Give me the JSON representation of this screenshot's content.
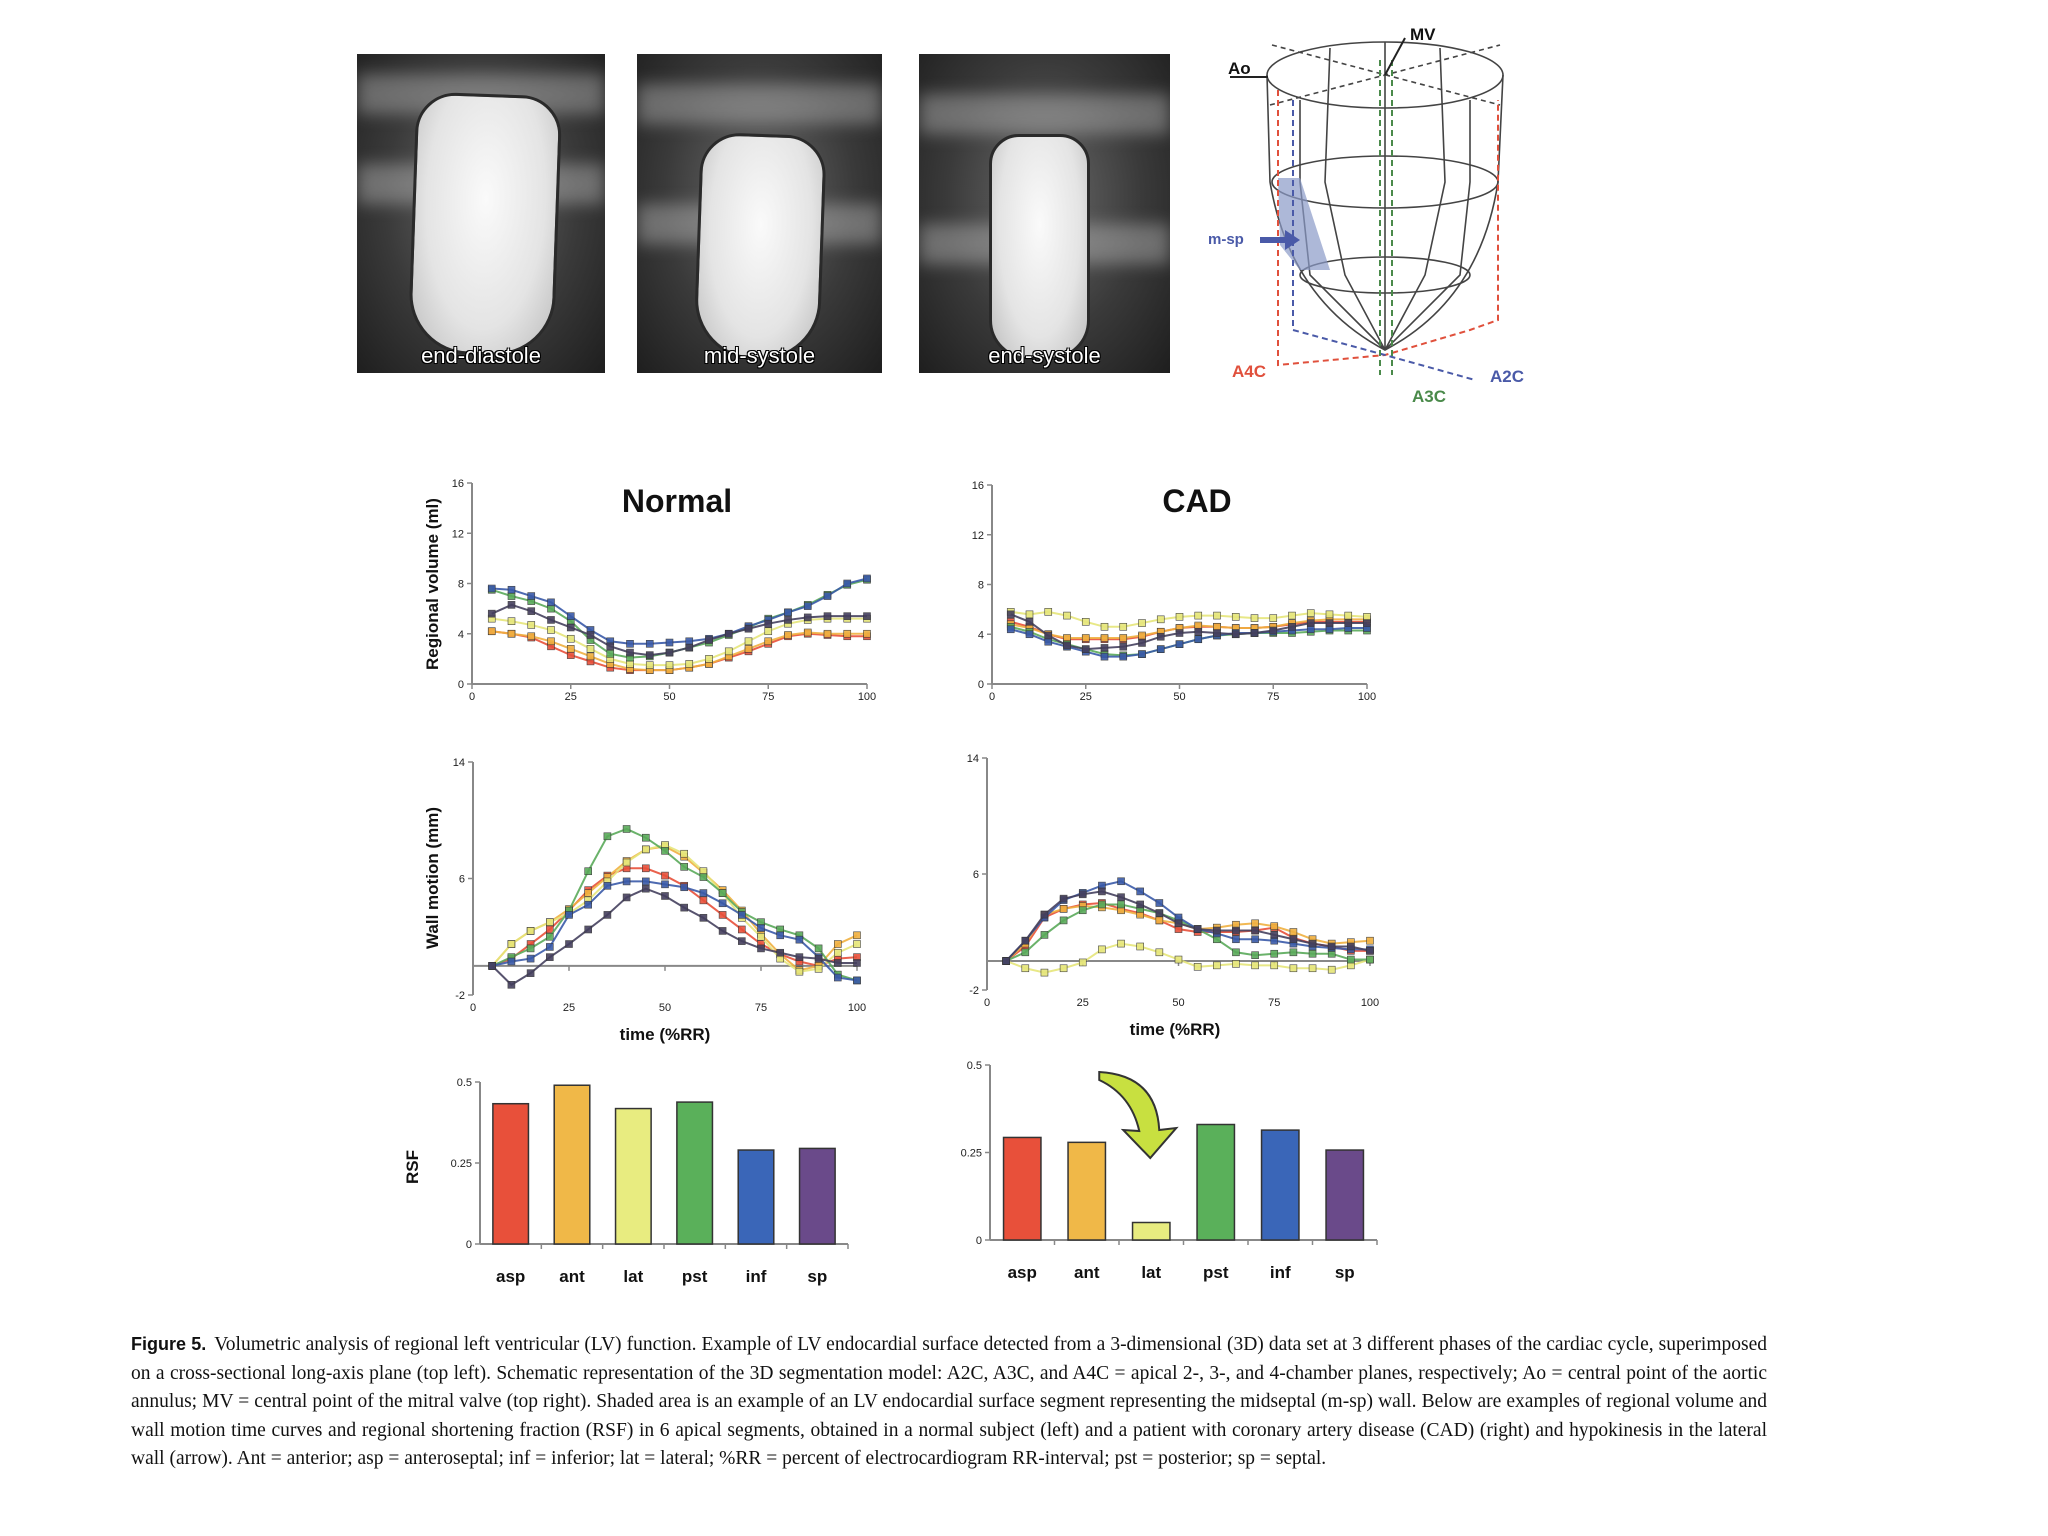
{
  "images": [
    {
      "label": "end-diastole"
    },
    {
      "label": "mid-systole"
    },
    {
      "label": "end-systole"
    }
  ],
  "schematic": {
    "labels": {
      "ao": "Ao",
      "mv": "MV",
      "msp": "m-sp",
      "a4c": "A4C",
      "a3c": "A3C",
      "a2c": "A2C"
    },
    "colors": {
      "a4c": "#e0503c",
      "a3c": "#4a8a4a",
      "a2c": "#4a5aa8",
      "shade": "#8a9ac8"
    }
  },
  "series_colors": [
    "#e8503a",
    "#f0b040",
    "#e6e67a",
    "#5aaa5a",
    "#3a5aa8",
    "#45405e"
  ],
  "chart_data": [
    {
      "id": "normal-volume",
      "type": "line",
      "title": "Normal",
      "ylabel": "Regional volume (ml)",
      "xlabel": "",
      "xlim": [
        0,
        100
      ],
      "ylim": [
        0,
        16
      ],
      "xticks": [
        "0",
        "25",
        "50",
        "75",
        "100"
      ],
      "yticks": [
        "0",
        "4",
        "8",
        "12",
        "16"
      ],
      "x": [
        5,
        10,
        15,
        20,
        25,
        30,
        35,
        40,
        45,
        50,
        55,
        60,
        65,
        70,
        75,
        80,
        85,
        90,
        95,
        100
      ],
      "series": [
        {
          "values": [
            4.2,
            4.0,
            3.7,
            3.0,
            2.3,
            1.8,
            1.3,
            1.1,
            1.1,
            1.1,
            1.3,
            1.6,
            2.1,
            2.6,
            3.2,
            3.8,
            4.0,
            3.9,
            3.8,
            3.8
          ]
        },
        {
          "values": [
            4.2,
            4.0,
            3.8,
            3.4,
            2.8,
            2.2,
            1.6,
            1.2,
            1.1,
            1.1,
            1.3,
            1.6,
            2.2,
            2.8,
            3.4,
            3.9,
            4.1,
            4.0,
            4.0,
            4.0
          ]
        },
        {
          "values": [
            5.2,
            5.0,
            4.7,
            4.3,
            3.6,
            2.8,
            2.0,
            1.6,
            1.5,
            1.5,
            1.6,
            2.0,
            2.6,
            3.4,
            4.2,
            4.8,
            5.1,
            5.2,
            5.2,
            5.2
          ]
        },
        {
          "values": [
            7.5,
            7.0,
            6.6,
            6.0,
            5.0,
            3.5,
            2.4,
            2.1,
            2.2,
            2.5,
            2.9,
            3.3,
            3.9,
            4.5,
            5.2,
            5.7,
            6.3,
            7.1,
            7.9,
            8.3
          ]
        },
        {
          "values": [
            7.6,
            7.5,
            7.0,
            6.5,
            5.4,
            4.3,
            3.4,
            3.2,
            3.2,
            3.3,
            3.4,
            3.6,
            4.0,
            4.6,
            5.1,
            5.7,
            6.2,
            7.0,
            8.0,
            8.4
          ]
        },
        {
          "values": [
            5.6,
            6.3,
            5.8,
            5.1,
            4.5,
            3.9,
            3.0,
            2.5,
            2.3,
            2.5,
            2.9,
            3.5,
            4.0,
            4.4,
            4.8,
            5.1,
            5.3,
            5.4,
            5.4,
            5.4
          ]
        }
      ]
    },
    {
      "id": "cad-volume",
      "type": "line",
      "title": "CAD",
      "ylabel": "",
      "xlabel": "",
      "xlim": [
        0,
        100
      ],
      "ylim": [
        0,
        16
      ],
      "xticks": [
        "0",
        "25",
        "50",
        "75",
        "100"
      ],
      "yticks": [
        "0",
        "4",
        "8",
        "12",
        "16"
      ],
      "x": [
        5,
        10,
        15,
        20,
        25,
        30,
        35,
        40,
        45,
        50,
        55,
        60,
        65,
        70,
        75,
        80,
        85,
        90,
        95,
        100
      ],
      "series": [
        {
          "values": [
            5.0,
            4.6,
            4.0,
            3.6,
            3.6,
            3.6,
            3.6,
            3.8,
            4.2,
            4.5,
            4.6,
            4.6,
            4.5,
            4.5,
            4.6,
            4.8,
            5.0,
            5.0,
            5.0,
            5.0
          ]
        },
        {
          "values": [
            4.8,
            4.5,
            4.0,
            3.7,
            3.7,
            3.7,
            3.7,
            3.9,
            4.2,
            4.5,
            4.7,
            4.6,
            4.5,
            4.5,
            4.6,
            4.9,
            5.1,
            5.2,
            5.2,
            5.2
          ]
        },
        {
          "values": [
            5.8,
            5.6,
            5.8,
            5.5,
            5.0,
            4.6,
            4.6,
            4.9,
            5.2,
            5.4,
            5.5,
            5.5,
            5.4,
            5.3,
            5.3,
            5.5,
            5.7,
            5.6,
            5.5,
            5.4
          ]
        },
        {
          "values": [
            4.6,
            4.2,
            3.6,
            3.2,
            2.8,
            2.4,
            2.3,
            2.4,
            2.8,
            3.2,
            3.6,
            3.9,
            4.0,
            4.1,
            4.1,
            4.1,
            4.2,
            4.3,
            4.3,
            4.3
          ]
        },
        {
          "values": [
            4.4,
            4.0,
            3.4,
            3.0,
            2.6,
            2.2,
            2.2,
            2.4,
            2.8,
            3.2,
            3.6,
            3.9,
            4.1,
            4.1,
            4.2,
            4.3,
            4.4,
            4.4,
            4.5,
            4.5
          ]
        },
        {
          "values": [
            5.6,
            5.0,
            3.9,
            3.1,
            2.8,
            2.9,
            3.0,
            3.3,
            3.8,
            4.1,
            4.2,
            4.1,
            4.0,
            4.1,
            4.3,
            4.6,
            4.9,
            4.9,
            4.9,
            4.9
          ]
        }
      ]
    },
    {
      "id": "normal-wall",
      "type": "line",
      "title": "",
      "ylabel": "Wall motion (mm)",
      "xlabel": "time (%RR)",
      "xlim": [
        0,
        100
      ],
      "ylim": [
        -2,
        14
      ],
      "xticks": [
        "0",
        "25",
        "50",
        "75",
        "100"
      ],
      "yticks": [
        "-2",
        "6",
        "14"
      ],
      "x": [
        5,
        10,
        15,
        20,
        25,
        30,
        35,
        40,
        45,
        50,
        55,
        60,
        65,
        70,
        75,
        80,
        85,
        90,
        95,
        100
      ],
      "series": [
        {
          "values": [
            0,
            0.5,
            1.5,
            2.5,
            3.8,
            5.2,
            6.2,
            6.7,
            6.7,
            6.2,
            5.5,
            4.5,
            3.5,
            2.5,
            1.5,
            0.8,
            0.3,
            0,
            0.5,
            0.6
          ]
        },
        {
          "values": [
            0,
            1.5,
            2.4,
            3.0,
            3.9,
            5.0,
            6.1,
            7.2,
            8.0,
            8.2,
            7.5,
            6.4,
            5.2,
            3.8,
            2.2,
            0.8,
            -0.3,
            0,
            1.5,
            2.1
          ]
        },
        {
          "values": [
            0,
            1.5,
            2.4,
            3.0,
            3.6,
            4.5,
            5.8,
            7.1,
            8.0,
            8.3,
            7.7,
            6.5,
            5.0,
            3.3,
            2.0,
            0.5,
            -0.4,
            -0.2,
            0.9,
            1.5
          ]
        },
        {
          "values": [
            0,
            0.6,
            1.2,
            2.0,
            3.8,
            6.5,
            8.9,
            9.4,
            8.8,
            7.9,
            6.8,
            6.1,
            5.0,
            3.7,
            3.0,
            2.5,
            2.1,
            1.2,
            -0.6,
            -1.0
          ]
        },
        {
          "values": [
            0,
            0.3,
            0.5,
            1.3,
            3.5,
            4.2,
            5.5,
            5.8,
            5.8,
            5.6,
            5.4,
            5.0,
            4.3,
            3.5,
            2.6,
            2.1,
            1.8,
            0.6,
            -0.8,
            -1.0
          ]
        },
        {
          "values": [
            0,
            -1.3,
            -0.5,
            0.6,
            1.5,
            2.5,
            3.5,
            4.7,
            5.3,
            4.8,
            4.0,
            3.3,
            2.4,
            1.7,
            1.2,
            0.9,
            0.6,
            0.5,
            0.2,
            0.2
          ]
        }
      ]
    },
    {
      "id": "cad-wall",
      "type": "line",
      "title": "",
      "ylabel": "",
      "xlabel": "time (%RR)",
      "xlim": [
        0,
        100
      ],
      "ylim": [
        -2,
        14
      ],
      "xticks": [
        "0",
        "25",
        "50",
        "75",
        "100"
      ],
      "yticks": [
        "-2",
        "6",
        "14"
      ],
      "x": [
        5,
        10,
        15,
        20,
        25,
        30,
        35,
        40,
        45,
        50,
        55,
        60,
        65,
        70,
        75,
        80,
        85,
        90,
        95,
        100
      ],
      "series": [
        {
          "values": [
            0,
            1.0,
            3.0,
            3.6,
            3.9,
            4.0,
            3.6,
            3.3,
            2.8,
            2.2,
            2.0,
            2.0,
            2.0,
            2.1,
            2.3,
            1.6,
            1.2,
            1.0,
            0.7,
            0.7
          ]
        },
        {
          "values": [
            0,
            1.2,
            3.2,
            3.6,
            3.8,
            3.7,
            3.5,
            3.2,
            2.8,
            2.6,
            2.2,
            2.3,
            2.5,
            2.6,
            2.4,
            2.0,
            1.5,
            1.2,
            1.3,
            1.4
          ]
        },
        {
          "values": [
            0,
            -0.5,
            -0.8,
            -0.5,
            -0.1,
            0.8,
            1.2,
            1.0,
            0.6,
            0.1,
            -0.4,
            -0.3,
            -0.2,
            -0.3,
            -0.3,
            -0.5,
            -0.5,
            -0.6,
            -0.3,
            0.1
          ]
        },
        {
          "values": [
            0,
            0.6,
            1.8,
            2.8,
            3.5,
            3.9,
            3.9,
            3.6,
            3.3,
            2.8,
            2.2,
            1.5,
            0.6,
            0.4,
            0.5,
            0.6,
            0.5,
            0.5,
            0.1,
            0.1
          ]
        },
        {
          "values": [
            0,
            1.4,
            3.0,
            4.2,
            4.7,
            5.2,
            5.5,
            4.8,
            4.0,
            3.0,
            2.2,
            1.9,
            1.5,
            1.5,
            1.4,
            1.2,
            1.0,
            0.9,
            0.8,
            0.8
          ]
        },
        {
          "values": [
            0,
            1.4,
            3.2,
            4.3,
            4.6,
            4.8,
            4.4,
            3.9,
            3.3,
            2.6,
            2.2,
            2.1,
            2.1,
            2.1,
            1.8,
            1.5,
            1.2,
            1.0,
            1.0,
            0.7
          ]
        }
      ]
    },
    {
      "id": "normal-rsf",
      "type": "bar",
      "title": "",
      "ylabel": "RSF",
      "xlabel": "",
      "ylim": [
        0,
        0.5
      ],
      "yticks": [
        "0",
        "0.25",
        "0.5"
      ],
      "categories": [
        "asp",
        "ant",
        "lat",
        "pst",
        "inf",
        "sp"
      ],
      "values": [
        0.433,
        0.49,
        0.418,
        0.438,
        0.29,
        0.295
      ]
    },
    {
      "id": "cad-rsf",
      "type": "bar",
      "title": "",
      "ylabel": "",
      "xlabel": "",
      "ylim": [
        0,
        0.5
      ],
      "yticks": [
        "0",
        "0.25",
        "0.5"
      ],
      "categories": [
        "asp",
        "ant",
        "lat",
        "pst",
        "inf",
        "sp"
      ],
      "values": [
        0.293,
        0.279,
        0.05,
        0.33,
        0.314,
        0.257
      ],
      "annotation": {
        "type": "arrow",
        "target": "lat",
        "color": "#c8e040"
      }
    }
  ],
  "caption": {
    "label": "Figure 5.",
    "text": "Volumetric analysis of regional left ventricular (LV) function. Example of LV endocardial surface detected from a 3-dimensional (3D) data set at 3 different phases of the cardiac cycle, superimposed on a cross-sectional long-axis plane (top left). Schematic representation of the 3D segmentation model: A2C, A3C, and A4C = apical 2-, 3-, and 4-chamber planes, respectively; Ao = central point of the aortic annulus; MV = central point of the mitral valve (top right). Shaded area is an example of an LV endocardial surface segment representing the midseptal (m-sp) wall. Below are examples of regional volume and wall motion time curves and regional shortening fraction (RSF) in 6 apical segments, obtained in a normal subject (left) and a patient with coronary artery disease (CAD) (right) and hypokinesis in the lateral wall (arrow). Ant = anterior; asp = anteroseptal; inf = inferior; lat = lateral; %RR = percent of electrocardiogram RR-interval; pst = posterior; sp = septal."
  }
}
